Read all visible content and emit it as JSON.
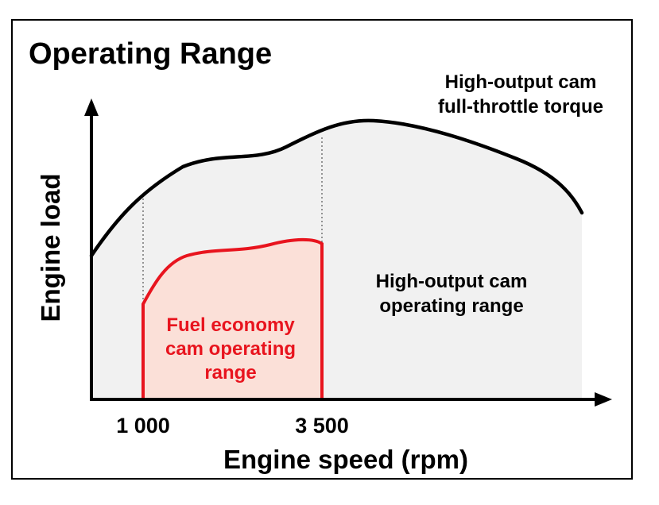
{
  "title": "Operating Range",
  "axes": {
    "x_label": "Engine speed (rpm)",
    "y_label": "Engine load",
    "x_ticks": [
      "1 000",
      "3 500"
    ]
  },
  "labels": {
    "torque_curve": [
      "High-output cam",
      "full-throttle torque"
    ],
    "high_output_range": [
      "High-output cam",
      "operating range"
    ],
    "fuel_economy_range": [
      "Fuel economy",
      "cam operating",
      "range"
    ]
  },
  "colors": {
    "fuel_economy": "#e8141e",
    "fuel_economy_fill": "#fbe0d8",
    "high_output_fill": "#f1f1f1",
    "curve": "#000000"
  }
}
